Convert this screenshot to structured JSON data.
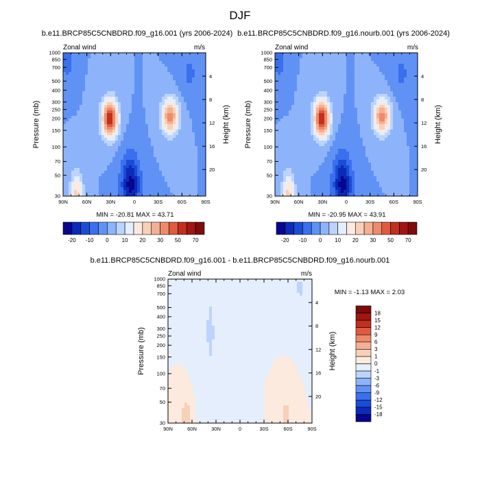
{
  "page_title": "DJF",
  "palettes": {
    "wind": [
      "#08068f",
      "#0c2ab8",
      "#1a4dd6",
      "#3a70ee",
      "#6092f5",
      "#8db4fb",
      "#bcd4fb",
      "#e4eefc",
      "#fbeadd",
      "#f8d0b9",
      "#f3b094",
      "#ee8a6b",
      "#e05a3f",
      "#c22f1f",
      "#a11515",
      "#7e0b0b"
    ],
    "diff": [
      "#08068f",
      "#0c2ab8",
      "#1a4dd6",
      "#3a70ee",
      "#6092f5",
      "#8db4fb",
      "#bcd4fb",
      "#e4eefc",
      "#fbeadd",
      "#f8d0b9",
      "#f3b094",
      "#ee8a6b",
      "#e05a3f",
      "#c22f1f",
      "#a11515",
      "#7e0b0b"
    ]
  },
  "chart_data": [
    {
      "type": "contour",
      "id": "panel1",
      "title": "b.e11.BRCP85C5CNBDRD.f09_g16.001 (yrs 2006-2024)",
      "left_label": "Zonal wind",
      "right_label": "m/s",
      "xlabel": "",
      "ylabel": "Pressure (mb)",
      "y2label": "Height (km)",
      "x_ticks": [
        "90N",
        "60N",
        "30N",
        "0",
        "30S",
        "60S",
        "90S"
      ],
      "y_ticks": [
        "30",
        "50",
        "70",
        "100",
        "150",
        "200",
        "250",
        "300",
        "400",
        "500",
        "700",
        "850",
        "1000"
      ],
      "y2_ticks": [
        "20",
        "16",
        "12",
        "8",
        "4"
      ],
      "xlim": [
        90,
        -90
      ],
      "ylim_mb": [
        1000,
        30
      ],
      "stats": "MIN = -20.81  MAX =  43.71",
      "min": -20.81,
      "max": 43.71,
      "levels": [
        -20,
        -15,
        -10,
        -5,
        0,
        5,
        10,
        15,
        20,
        25,
        30,
        35,
        40,
        50,
        60,
        70
      ],
      "colorbar_labels": [
        "-20",
        "-10",
        "0",
        "10",
        "20",
        "30",
        "50",
        "70"
      ],
      "features": [
        {
          "lat": 31,
          "p": 200,
          "amp": 45,
          "wlat": 10,
          "wz": 3.2
        },
        {
          "lat": -45,
          "p": 210,
          "amp": 32,
          "wlat": 11,
          "wz": 3.0
        },
        {
          "lat": 73,
          "p": 30,
          "amp": 22,
          "wlat": 8,
          "wz": 4.0
        },
        {
          "lat": 5,
          "p": 40,
          "amp": -22,
          "wlat": 12,
          "wz": 5.0
        },
        {
          "lat": 85,
          "p": 800,
          "amp": -9,
          "wlat": 7,
          "wz": 3.0
        },
        {
          "lat": -70,
          "p": 600,
          "amp": -6,
          "wlat": 12,
          "wz": 4.0
        }
      ]
    },
    {
      "type": "contour",
      "id": "panel2",
      "title": "b.e11.BRCP85C5CNBDRD.f09_g16.nourb.001 (yrs 2006-2024)",
      "left_label": "Zonal wind",
      "right_label": "m/s",
      "xlabel": "",
      "ylabel": "Pressure (mb)",
      "y2label": "Height (km)",
      "x_ticks": [
        "90N",
        "60N",
        "30N",
        "0",
        "30S",
        "60S",
        "90S"
      ],
      "y_ticks": [
        "30",
        "50",
        "70",
        "100",
        "150",
        "200",
        "250",
        "300",
        "400",
        "500",
        "700",
        "850",
        "1000"
      ],
      "y2_ticks": [
        "20",
        "16",
        "12",
        "8",
        "4"
      ],
      "xlim": [
        90,
        -90
      ],
      "ylim_mb": [
        1000,
        30
      ],
      "stats": "MIN = -20.95  MAX =  43.91",
      "min": -20.95,
      "max": 43.91,
      "levels": [
        -20,
        -15,
        -10,
        -5,
        0,
        5,
        10,
        15,
        20,
        25,
        30,
        35,
        40,
        50,
        60,
        70
      ],
      "colorbar_labels": [
        "-20",
        "-10",
        "0",
        "10",
        "20",
        "30",
        "50",
        "70"
      ],
      "features": [
        {
          "lat": 31,
          "p": 200,
          "amp": 45,
          "wlat": 10,
          "wz": 3.2
        },
        {
          "lat": -45,
          "p": 210,
          "amp": 32,
          "wlat": 11,
          "wz": 3.0
        },
        {
          "lat": 73,
          "p": 30,
          "amp": 22,
          "wlat": 8,
          "wz": 4.0
        },
        {
          "lat": 5,
          "p": 40,
          "amp": -22,
          "wlat": 12,
          "wz": 5.0
        },
        {
          "lat": 85,
          "p": 800,
          "amp": -9,
          "wlat": 7,
          "wz": 3.0
        },
        {
          "lat": -70,
          "p": 600,
          "amp": -6,
          "wlat": 12,
          "wz": 4.0
        }
      ]
    },
    {
      "type": "contour",
      "id": "panel3",
      "title": "b.e11.BRCP85C5CNBDRD.f09_g16.001 - b.e11.BRCP85C5CNBDRD.f09_g16.nourb.001",
      "left_label": "Zonal wind",
      "right_label": "m/s",
      "xlabel": "",
      "ylabel": "Pressure (mb)",
      "y2label": "Height (km)",
      "x_ticks": [
        "90N",
        "60N",
        "30N",
        "0",
        "30S",
        "60S",
        "90S"
      ],
      "y_ticks": [
        "30",
        "50",
        "70",
        "100",
        "150",
        "200",
        "250",
        "300",
        "400",
        "500",
        "700",
        "850",
        "1000"
      ],
      "y2_ticks": [
        "20",
        "16",
        "12",
        "8",
        "4"
      ],
      "xlim": [
        90,
        -90
      ],
      "ylim_mb": [
        1000,
        30
      ],
      "stats": "MIN = -1.13  MAX =   2.03",
      "min": -1.13,
      "max": 2.03,
      "levels": [
        -18,
        -15,
        -12,
        -9,
        -6,
        -3,
        -1,
        0,
        1,
        3,
        6,
        9,
        12,
        15,
        18
      ],
      "colorbar_labels": [
        "18",
        "15",
        "12",
        "9",
        "6",
        "3",
        "1",
        "0",
        "-1",
        "-3",
        "-6",
        "-9",
        "-12",
        "-15",
        "-18"
      ],
      "features": [
        {
          "lat": 67,
          "p": 35,
          "amp": 2.0,
          "wlat": 6,
          "wz": 3.0
        },
        {
          "lat": -57,
          "p": 35,
          "amp": 1.8,
          "wlat": 5,
          "wz": 3.0
        },
        {
          "lat": 37,
          "p": 280,
          "amp": -1.1,
          "wlat": 12,
          "wz": 14.0
        },
        {
          "lat": -75,
          "p": 800,
          "amp": -1.1,
          "wlat": 15,
          "wz": 3.5
        }
      ]
    }
  ]
}
